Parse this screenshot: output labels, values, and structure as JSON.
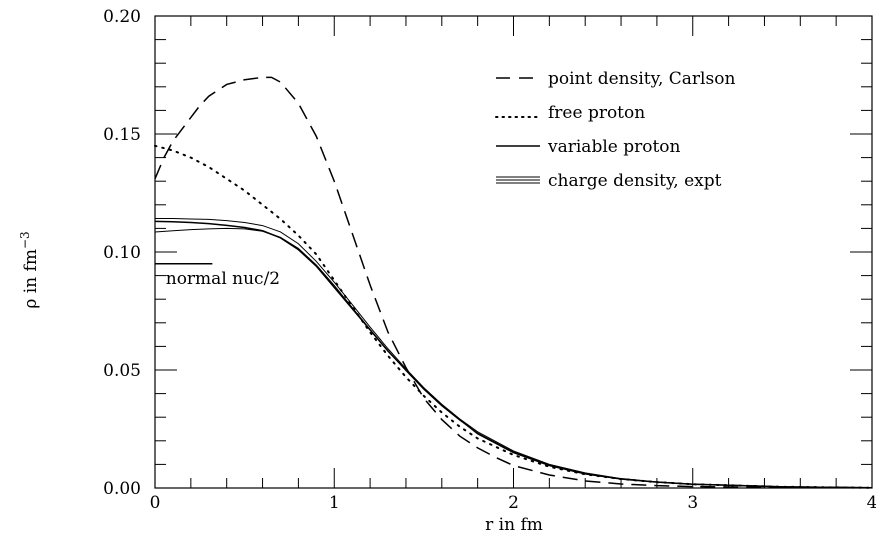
{
  "chart_data": {
    "type": "line",
    "title": "",
    "xlabel": "r in fm",
    "ylabel_main": "ρ in fm",
    "ylabel_exp": "−3",
    "xlim": [
      0,
      4
    ],
    "ylim": [
      0,
      0.2
    ],
    "x_ticks": [
      0,
      1,
      2,
      3,
      4
    ],
    "x_tick_labels": [
      "0",
      "1",
      "2",
      "3",
      "4"
    ],
    "x_minor_step": 0.2,
    "y_ticks": [
      0,
      0.05,
      0.1,
      0.15,
      0.2
    ],
    "y_tick_labels": [
      "0.00",
      "0.05",
      "0.10",
      "0.15",
      "0.20"
    ],
    "y_minor_step": 0.01,
    "grid": false,
    "legend_position": "top-right",
    "series": [
      {
        "name": "point density, Carlson",
        "legend_label": "point density, Carlson",
        "style": "dashed",
        "x": [
          0,
          0.05,
          0.1,
          0.15,
          0.2,
          0.25,
          0.3,
          0.4,
          0.5,
          0.6,
          0.65,
          0.7,
          0.8,
          0.9,
          1.0,
          1.1,
          1.2,
          1.3,
          1.4,
          1.5,
          1.6,
          1.7,
          1.8,
          1.9,
          2.0,
          2.2,
          2.4,
          2.6,
          2.8,
          3.0,
          3.5,
          4.0
        ],
        "y": [
          0.131,
          0.14,
          0.147,
          0.152,
          0.157,
          0.162,
          0.166,
          0.171,
          0.173,
          0.174,
          0.174,
          0.172,
          0.163,
          0.149,
          0.13,
          0.108,
          0.086,
          0.066,
          0.051,
          0.038,
          0.029,
          0.022,
          0.017,
          0.013,
          0.0095,
          0.0055,
          0.003,
          0.0017,
          0.001,
          0.0006,
          0.0002,
          0.0001
        ]
      },
      {
        "name": "free proton",
        "legend_label": "free proton",
        "style": "dotted",
        "x": [
          0,
          0.1,
          0.2,
          0.3,
          0.4,
          0.5,
          0.6,
          0.7,
          0.8,
          0.9,
          1.0,
          1.1,
          1.2,
          1.3,
          1.4,
          1.5,
          1.6,
          1.7,
          1.8,
          2.0,
          2.2,
          2.4,
          2.6,
          2.8,
          3.0,
          3.5,
          4.0
        ],
        "y": [
          0.145,
          0.143,
          0.14,
          0.136,
          0.131,
          0.126,
          0.12,
          0.114,
          0.107,
          0.099,
          0.088,
          0.077,
          0.066,
          0.056,
          0.047,
          0.039,
          0.032,
          0.026,
          0.021,
          0.014,
          0.009,
          0.0058,
          0.0038,
          0.0025,
          0.0016,
          0.0005,
          0.0001
        ]
      },
      {
        "name": "variable proton",
        "legend_label": "variable proton",
        "style": "solid",
        "x": [
          0,
          0.1,
          0.2,
          0.3,
          0.4,
          0.5,
          0.6,
          0.7,
          0.8,
          0.9,
          1.0,
          1.1,
          1.2,
          1.3,
          1.4,
          1.5,
          1.6,
          1.7,
          1.8,
          2.0,
          2.2,
          2.4,
          2.6,
          2.8,
          3.0,
          3.5,
          4.0
        ],
        "y": [
          0.113,
          0.1128,
          0.1125,
          0.112,
          0.1113,
          0.1104,
          0.109,
          0.106,
          0.101,
          0.094,
          0.085,
          0.076,
          0.067,
          0.058,
          0.05,
          0.042,
          0.035,
          0.029,
          0.023,
          0.015,
          0.0095,
          0.006,
          0.0038,
          0.0025,
          0.0016,
          0.0005,
          0.0001
        ]
      },
      {
        "name": "charge density, expt",
        "legend_label": "charge density, expt",
        "style": "band",
        "x": [
          0,
          0.1,
          0.2,
          0.3,
          0.4,
          0.5,
          0.6,
          0.7,
          0.8,
          0.9,
          1.0,
          1.1,
          1.2,
          1.3,
          1.4,
          1.5,
          1.6,
          1.7,
          1.8,
          2.0,
          2.2,
          2.4,
          2.6,
          2.8,
          3.0,
          3.5,
          4.0
        ],
        "y_upper": [
          0.1142,
          0.1142,
          0.114,
          0.1138,
          0.1133,
          0.1125,
          0.1112,
          0.1085,
          0.1035,
          0.096,
          0.0872,
          0.0778,
          0.0682,
          0.059,
          0.0505,
          0.0425,
          0.0355,
          0.0293,
          0.0238,
          0.0157,
          0.01,
          0.0064,
          0.004,
          0.0026,
          0.0017,
          0.0006,
          0.0002
        ],
        "y_lower": [
          0.1085,
          0.109,
          0.1095,
          0.1098,
          0.11,
          0.1098,
          0.1088,
          0.1062,
          0.1015,
          0.0945,
          0.0858,
          0.0765,
          0.0672,
          0.0582,
          0.0497,
          0.0418,
          0.0348,
          0.0287,
          0.0233,
          0.0153,
          0.0097,
          0.0062,
          0.0039,
          0.0025,
          0.0016,
          0.0005,
          0.0001
        ]
      }
    ],
    "annotations": [
      {
        "id": "normal-nuc",
        "text": "normal nuc/2",
        "y": 0.095,
        "x_start": 0.0,
        "x_end": 0.32,
        "text_x": 0.06,
        "text_y": 0.0865
      }
    ]
  }
}
